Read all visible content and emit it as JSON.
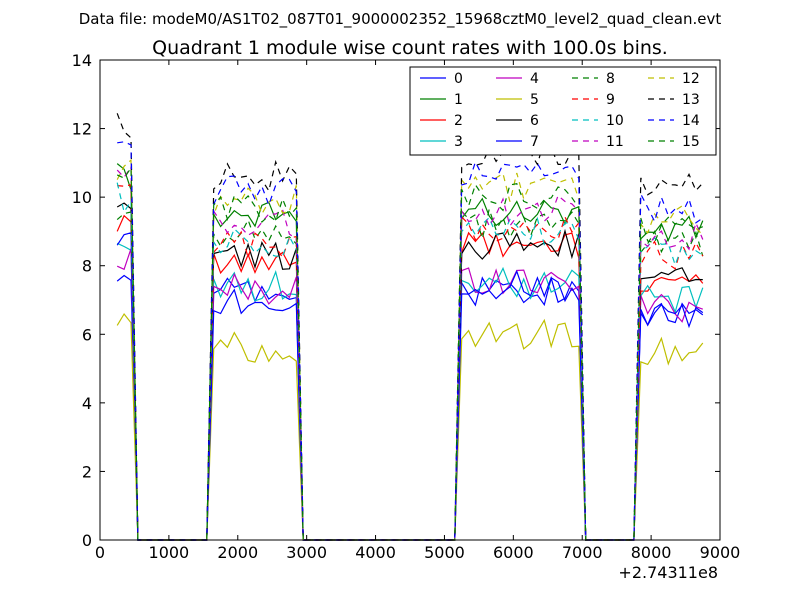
{
  "figure": {
    "suptitle": "Data file: modeM0/AS1T02_087T01_9000002352_15968cztM0_level2_quad_clean.evt"
  },
  "chart_data": {
    "type": "line",
    "title": "Quadrant 1 module wise count rates with 100.0s bins.",
    "xlabel": "",
    "ylabel": "",
    "xlim": [
      0,
      9000
    ],
    "ylim": [
      0,
      14
    ],
    "x_offset_label": "+2.74311e8",
    "xticks": [
      0,
      1000,
      2000,
      3000,
      4000,
      5000,
      6000,
      7000,
      8000,
      9000
    ],
    "yticks": [
      0,
      2,
      4,
      6,
      8,
      10,
      12,
      14
    ],
    "legend_position": "top-right",
    "legend_columns": 4,
    "x": [
      250,
      350,
      450,
      550,
      650,
      750,
      850,
      950,
      1050,
      1150,
      1250,
      1350,
      1450,
      1550,
      1650,
      1750,
      1850,
      1950,
      2050,
      2150,
      2250,
      2350,
      2450,
      2550,
      2650,
      2750,
      2850,
      2950,
      3050,
      3150,
      3250,
      3350,
      3450,
      3550,
      3650,
      3750,
      3850,
      3950,
      4050,
      4150,
      4250,
      4350,
      4450,
      4550,
      4650,
      4750,
      4850,
      4950,
      5050,
      5150,
      5250,
      5350,
      5450,
      5550,
      5650,
      5750,
      5850,
      5950,
      6050,
      6150,
      6250,
      6350,
      6450,
      6550,
      6650,
      6750,
      6850,
      6950,
      7050,
      7150,
      7250,
      7350,
      7450,
      7550,
      7650,
      7750,
      7850,
      7950,
      8050,
      8150,
      8250,
      8350,
      8450,
      8550,
      8650,
      8750
    ],
    "segments": [
      {
        "start": 250,
        "end": 450
      },
      {
        "start": 1650,
        "end": 2850
      },
      {
        "start": 5250,
        "end": 6950
      },
      {
        "start": 7850,
        "end": 8750
      }
    ],
    "series": [
      {
        "name": "0",
        "color": "#0000ff",
        "dash": "solid",
        "levels": [
          8.0,
          7.2,
          7.3,
          6.7
        ]
      },
      {
        "name": "1",
        "color": "#008000",
        "dash": "solid",
        "levels": [
          10.6,
          9.5,
          9.6,
          9.0
        ]
      },
      {
        "name": "2",
        "color": "#ff0000",
        "dash": "solid",
        "levels": [
          9.4,
          8.0,
          8.6,
          7.6
        ]
      },
      {
        "name": "3",
        "color": "#00bfbf",
        "dash": "solid",
        "levels": [
          8.6,
          7.4,
          7.5,
          7.0
        ]
      },
      {
        "name": "4",
        "color": "#bf00bf",
        "dash": "solid",
        "levels": [
          8.1,
          7.3,
          7.6,
          6.8
        ]
      },
      {
        "name": "5",
        "color": "#bfbf00",
        "dash": "solid",
        "levels": [
          6.3,
          5.6,
          6.0,
          5.5
        ]
      },
      {
        "name": "6",
        "color": "#000000",
        "dash": "solid",
        "levels": [
          9.6,
          8.3,
          8.6,
          7.9
        ]
      },
      {
        "name": "7",
        "color": "#0000ff",
        "dash": "solid",
        "levels": [
          8.9,
          7.0,
          7.4,
          6.6
        ]
      },
      {
        "name": "8",
        "color": "#008000",
        "dash": "dashed",
        "levels": [
          9.5,
          9.0,
          9.2,
          8.7
        ]
      },
      {
        "name": "9",
        "color": "#ff0000",
        "dash": "dashed",
        "levels": [
          10.3,
          8.6,
          9.0,
          8.3
        ]
      },
      {
        "name": "10",
        "color": "#00bfbf",
        "dash": "dashed",
        "levels": [
          10.0,
          8.7,
          9.0,
          8.4
        ]
      },
      {
        "name": "11",
        "color": "#bf00bf",
        "dash": "dashed",
        "levels": [
          10.5,
          9.2,
          9.6,
          8.8
        ]
      },
      {
        "name": "12",
        "color": "#bfbf00",
        "dash": "dashed",
        "levels": [
          10.8,
          9.9,
          10.3,
          9.3
        ]
      },
      {
        "name": "13",
        "color": "#000000",
        "dash": "dashed",
        "levels": [
          12.0,
          10.6,
          11.3,
          10.3
        ]
      },
      {
        "name": "14",
        "color": "#0000ff",
        "dash": "dashed",
        "levels": [
          11.3,
          10.2,
          10.7,
          9.7
        ]
      },
      {
        "name": "15",
        "color": "#008000",
        "dash": "dashed",
        "levels": [
          10.7,
          9.6,
          10.0,
          9.1
        ]
      }
    ]
  }
}
